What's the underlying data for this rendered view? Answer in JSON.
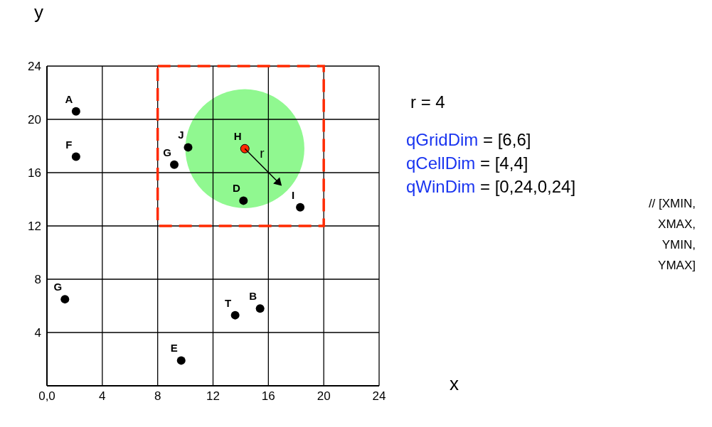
{
  "chart_data": {
    "type": "scatter",
    "xlabel": "x",
    "ylabel": "y",
    "series": [
      {
        "color": "#000000",
        "x": [
          2.1,
          2.1,
          10.2,
          9.2,
          14.2,
          18.3,
          1.3,
          13.6,
          15.4,
          9.7
        ],
        "values": [
          20.6,
          17.2,
          17.9,
          16.6,
          13.9,
          13.4,
          6.5,
          5.3,
          5.8,
          1.9
        ]
      },
      {
        "color": "#ff2a00",
        "x": [
          14.3
        ],
        "values": [
          17.8
        ]
      }
    ],
    "xlim": [
      0,
      24
    ],
    "ylim": [
      0,
      24
    ],
    "xticks": [
      {
        "value": 0,
        "label": "0,0"
      },
      4,
      8,
      12,
      16,
      20,
      24
    ],
    "yticks": [
      4,
      8,
      12,
      16,
      20,
      24
    ],
    "grid": true,
    "marker": "circle",
    "annotations": [
      {
        "text": "A",
        "x": 2.1,
        "y": 20.6
      },
      {
        "text": "F",
        "x": 2.1,
        "y": 17.2
      },
      {
        "text": "J",
        "x": 10.2,
        "y": 17.9
      },
      {
        "text": "G",
        "x": 9.2,
        "y": 16.6
      },
      {
        "text": "H",
        "x": 14.3,
        "y": 17.8
      },
      {
        "text": "D",
        "x": 14.2,
        "y": 13.9
      },
      {
        "text": "I",
        "x": 18.3,
        "y": 13.4
      },
      {
        "text": "G",
        "x": 1.3,
        "y": 6.5
      },
      {
        "text": "T",
        "x": 13.6,
        "y": 5.3
      },
      {
        "text": "B",
        "x": 15.4,
        "y": 5.8
      },
      {
        "text": "E",
        "x": 9.7,
        "y": 1.9
      },
      "r",
      "r = 4",
      "qGridDim = [6,6]",
      "qCellDim = [4,4]",
      "qWinDim = [0,24,0,24]",
      "// [XMIN, XMAX, YMIN, YMAX]"
    ]
  }
}
